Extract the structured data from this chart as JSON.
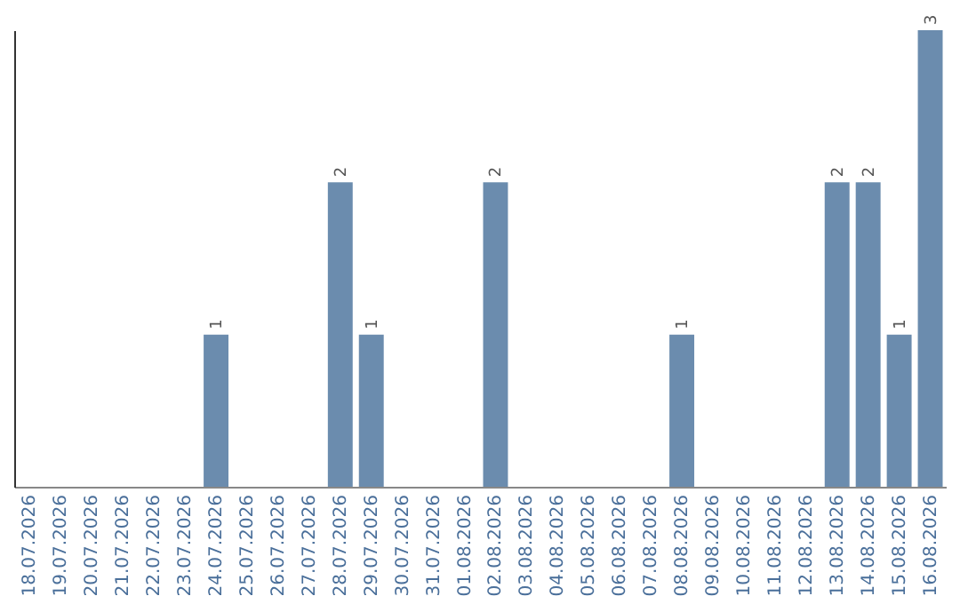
{
  "chart_data": {
    "type": "bar",
    "categories": [
      "18.07.2026",
      "19.07.2026",
      "20.07.2026",
      "21.07.2026",
      "22.07.2026",
      "23.07.2026",
      "24.07.2026",
      "25.07.2026",
      "26.07.2026",
      "27.07.2026",
      "28.07.2026",
      "29.07.2026",
      "30.07.2026",
      "31.07.2026",
      "01.08.2026",
      "02.08.2026",
      "03.08.2026",
      "04.08.2026",
      "05.08.2026",
      "06.08.2026",
      "07.08.2026",
      "08.08.2026",
      "09.08.2026",
      "10.08.2026",
      "11.08.2026",
      "12.08.2026",
      "13.08.2026",
      "14.08.2026",
      "15.08.2026",
      "16.08.2026"
    ],
    "values": [
      0,
      0,
      0,
      0,
      0,
      0,
      1,
      0,
      0,
      0,
      2,
      1,
      0,
      0,
      0,
      2,
      0,
      0,
      0,
      0,
      0,
      1,
      0,
      0,
      0,
      0,
      2,
      2,
      1,
      3
    ],
    "value_labels": [
      null,
      null,
      null,
      null,
      null,
      null,
      "1",
      null,
      null,
      null,
      "2",
      "1",
      null,
      null,
      null,
      "2",
      null,
      null,
      null,
      null,
      null,
      "1",
      null,
      null,
      null,
      null,
      "2",
      "2",
      "1",
      "3"
    ],
    "color": "#6b8cae",
    "ylim": [
      0,
      3
    ],
    "tick_labels": "x",
    "grid": false
  }
}
